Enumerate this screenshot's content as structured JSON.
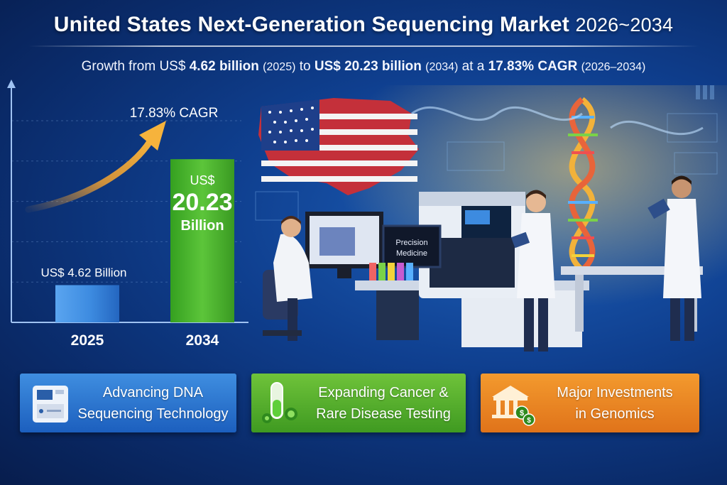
{
  "header": {
    "title_main": "United States Next-Generation Sequencing Market",
    "title_years": "2026~2034",
    "subtitle_start": "Growth from US$",
    "subtitle_v1": "4.62 billion",
    "subtitle_p1": "(2025)",
    "subtitle_to": "to",
    "subtitle_v2": "US$ 20.23 billion",
    "subtitle_p2": "(2034)",
    "subtitle_at": "at a",
    "subtitle_cagr": "17.83% CAGR",
    "subtitle_p3": "(2026–2034)"
  },
  "chart_data": {
    "type": "bar",
    "categories": [
      "2025",
      "2034"
    ],
    "values": [
      4.62,
      20.23
    ],
    "unit": "US$ billion",
    "bar_labels": [
      "US$ 4.62 Billion",
      null
    ],
    "bar_label_2034": {
      "prefix": "US$",
      "value": "20.23",
      "suffix": "Billion"
    },
    "annotation": "17.83% CAGR",
    "colors": [
      "#3d8be0",
      "#4cb52b"
    ],
    "arrow_color": "#f0a030",
    "ylim": [
      0,
      25
    ],
    "grid": true
  },
  "scene": {
    "screen_text_line1": "Precision",
    "screen_text_line2": "Medicine"
  },
  "cards": [
    {
      "line1": "Advancing DNA",
      "line2": "Sequencing Technology",
      "icon": "sequencer-icon",
      "color": "#2a72cc"
    },
    {
      "line1": "Expanding Cancer &",
      "line2": "Rare Disease Testing",
      "icon": "test-tube-virus-icon",
      "color": "#52aa2b"
    },
    {
      "line1": "Major Investments",
      "line2": "in Genomics",
      "icon": "bank-dollar-icon",
      "color": "#ea8424"
    }
  ]
}
